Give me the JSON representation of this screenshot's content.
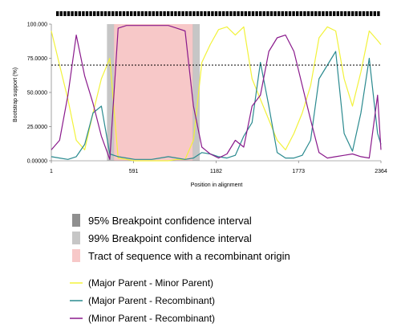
{
  "chart_data": {
    "type": "line",
    "xlabel": "Position in alignment",
    "ylabel": "Bootstrap support (%)",
    "xlim": [
      1,
      2364
    ],
    "ylim": [
      0,
      100
    ],
    "x_ticks": [
      "1",
      "591",
      "1182",
      "1773",
      "2364"
    ],
    "y_ticks": [
      "0.00000",
      "25.0000",
      "50.0000",
      "75.0000",
      "100.000"
    ],
    "threshold": 70,
    "regions": {
      "ci95": [
        450,
        1015
      ],
      "ci99": [
        400,
        1065
      ],
      "recombinant_tract": [
        450,
        1015
      ]
    },
    "x": [
      1,
      60,
      120,
      180,
      240,
      300,
      360,
      420,
      480,
      540,
      600,
      660,
      720,
      780,
      840,
      900,
      960,
      1020,
      1080,
      1140,
      1200,
      1260,
      1320,
      1380,
      1440,
      1500,
      1560,
      1620,
      1680,
      1740,
      1800,
      1860,
      1920,
      1980,
      2040,
      2100,
      2160,
      2220,
      2280,
      2340,
      2364
    ],
    "series": [
      {
        "name": "(Major Parent - Minor Parent)",
        "color": "#f2f23a",
        "values": [
          95,
          70,
          45,
          15,
          8,
          35,
          60,
          75,
          2,
          1,
          0,
          0,
          0,
          0,
          0,
          1,
          1,
          15,
          72,
          85,
          96,
          98,
          92,
          98,
          60,
          45,
          30,
          15,
          8,
          20,
          35,
          55,
          90,
          98,
          95,
          60,
          40,
          65,
          95,
          88,
          85
        ]
      },
      {
        "name": "(Major Parent - Recombinant)",
        "color": "#2a8a8f",
        "values": [
          3,
          2,
          1,
          3,
          12,
          35,
          40,
          5,
          3,
          2,
          1,
          1,
          1,
          2,
          3,
          2,
          1,
          2,
          6,
          5,
          3,
          2,
          4,
          18,
          28,
          72,
          40,
          6,
          2,
          2,
          4,
          15,
          60,
          70,
          80,
          20,
          7,
          35,
          75,
          20,
          12
        ]
      },
      {
        "name": "(Minor Parent - Recombinant)",
        "color": "#8a1a8c",
        "values": [
          8,
          15,
          48,
          92,
          62,
          42,
          18,
          1,
          97,
          99,
          99,
          99,
          99,
          99,
          99,
          97,
          95,
          40,
          10,
          5,
          2,
          5,
          15,
          10,
          40,
          48,
          80,
          90,
          92,
          80,
          55,
          30,
          6,
          2,
          3,
          4,
          5,
          3,
          2,
          48,
          8
        ]
      }
    ],
    "legend": {
      "ci95": "95% Breakpoint confidence interval",
      "ci99": "99% Breakpoint confidence interval",
      "tract": "Tract of sequence with a recombinant origin"
    },
    "colors": {
      "ci95": "#8f8f8f",
      "ci99": "#c6c6c6",
      "tract": "#f7c8c8",
      "threshold": "#000000"
    }
  }
}
